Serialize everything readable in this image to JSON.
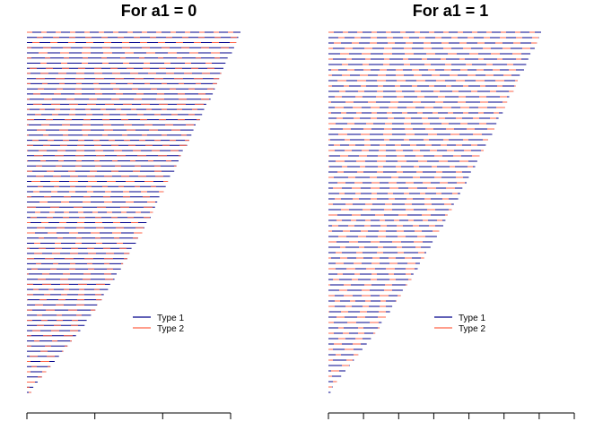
{
  "chart_data": [
    {
      "type": "bar",
      "orientation": "horizontal",
      "title": "For a1 = 0",
      "legend": [
        {
          "name": "Type 1",
          "color": "#00008B"
        },
        {
          "name": "Type 2",
          "color": "#FF6347"
        }
      ],
      "legend_position": "bottom-right",
      "x_ticks": 4,
      "max_length": 1.0,
      "series_note": "each line is a Type 1 (blue) segment overlaid with Type 2 (red) dashed segments",
      "values": [
        1.0,
        0.99,
        0.98,
        0.97,
        0.96,
        0.94,
        0.93,
        0.92,
        0.91,
        0.9,
        0.89,
        0.88,
        0.87,
        0.86,
        0.84,
        0.83,
        0.82,
        0.81,
        0.79,
        0.78,
        0.77,
        0.76,
        0.75,
        0.73,
        0.72,
        0.71,
        0.7,
        0.69,
        0.67,
        0.66,
        0.65,
        0.64,
        0.62,
        0.61,
        0.6,
        0.59,
        0.58,
        0.56,
        0.55,
        0.54,
        0.52,
        0.51,
        0.49,
        0.48,
        0.47,
        0.45,
        0.44,
        0.42,
        0.41,
        0.39,
        0.38,
        0.36,
        0.35,
        0.33,
        0.32,
        0.3,
        0.28,
        0.27,
        0.25,
        0.23,
        0.21,
        0.19,
        0.17,
        0.15,
        0.13,
        0.11,
        0.09,
        0.07,
        0.05,
        0.03,
        0.02
      ]
    },
    {
      "type": "bar",
      "orientation": "horizontal",
      "title": "For a1 = 1",
      "legend": [
        {
          "name": "Type 1",
          "color": "#00008B"
        },
        {
          "name": "Type 2",
          "color": "#FF6347"
        }
      ],
      "legend_position": "bottom-right",
      "x_ticks": 8,
      "max_length": 1.0,
      "series_note": "each line is a Type 1 (blue) segment overlaid with Type 2 (red) dashed segments",
      "values": [
        1.0,
        0.99,
        0.98,
        0.97,
        0.95,
        0.94,
        0.93,
        0.92,
        0.9,
        0.89,
        0.88,
        0.87,
        0.85,
        0.84,
        0.83,
        0.82,
        0.8,
        0.79,
        0.78,
        0.77,
        0.75,
        0.74,
        0.73,
        0.71,
        0.7,
        0.69,
        0.67,
        0.66,
        0.65,
        0.63,
        0.62,
        0.61,
        0.59,
        0.58,
        0.56,
        0.55,
        0.54,
        0.52,
        0.51,
        0.49,
        0.48,
        0.46,
        0.45,
        0.43,
        0.42,
        0.4,
        0.39,
        0.37,
        0.35,
        0.34,
        0.32,
        0.3,
        0.29,
        0.27,
        0.25,
        0.24,
        0.22,
        0.2,
        0.18,
        0.16,
        0.14,
        0.12,
        0.1,
        0.08,
        0.06,
        0.04,
        0.02,
        0.01
      ]
    }
  ]
}
